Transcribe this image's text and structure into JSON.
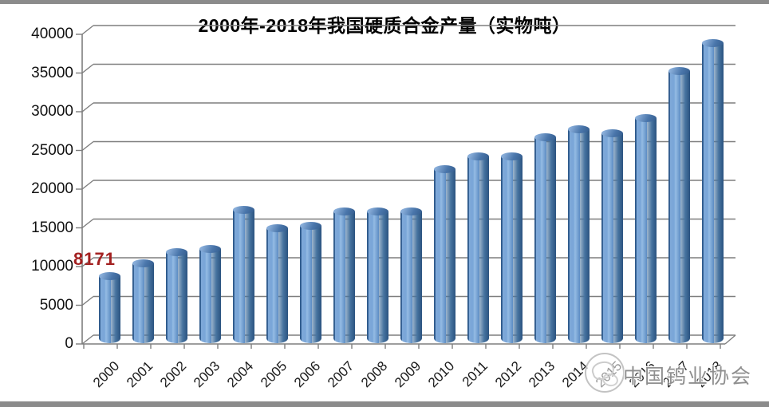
{
  "frame": {
    "top_strip_color": "#8b8b8b",
    "bottom_strip_color": "#8b8b8b",
    "background_color": "#ffffff"
  },
  "chart_data": {
    "type": "bar",
    "style": "3d-cylinder",
    "title": "2000年-2018年我国硬质合金产量（实物吨）",
    "categories": [
      "2000",
      "2001",
      "2002",
      "2003",
      "2004",
      "2005",
      "2006",
      "2007",
      "2008",
      "2009",
      "2010",
      "2011",
      "2012",
      "2013",
      "2014",
      "2015",
      "2016",
      "2017",
      "2018"
    ],
    "values": [
      8171,
      9800,
      11200,
      11700,
      16700,
      14300,
      14600,
      16500,
      16500,
      16500,
      22000,
      23600,
      23600,
      26100,
      27100,
      26600,
      28600,
      34600,
      38200
    ],
    "xlabel": "",
    "ylabel": "",
    "ylim": [
      0,
      40000
    ],
    "ytick_interval": 5000,
    "ytick_labels": [
      "0",
      "5000",
      "10000",
      "15000",
      "20000",
      "25000",
      "30000",
      "35000",
      "40000"
    ],
    "grid": "on",
    "legend": "none",
    "data_label": {
      "text": "8171",
      "series_index": 0,
      "point_index": 0,
      "color": "#a32020"
    },
    "bar_color": "#4f81bd",
    "gridline_color": "#7e7e7e",
    "axis_color": "#7e7e7e"
  },
  "watermark": {
    "text": "中国钨业协会",
    "logo": "association-ring-logo",
    "color": "#8f8f8f"
  }
}
